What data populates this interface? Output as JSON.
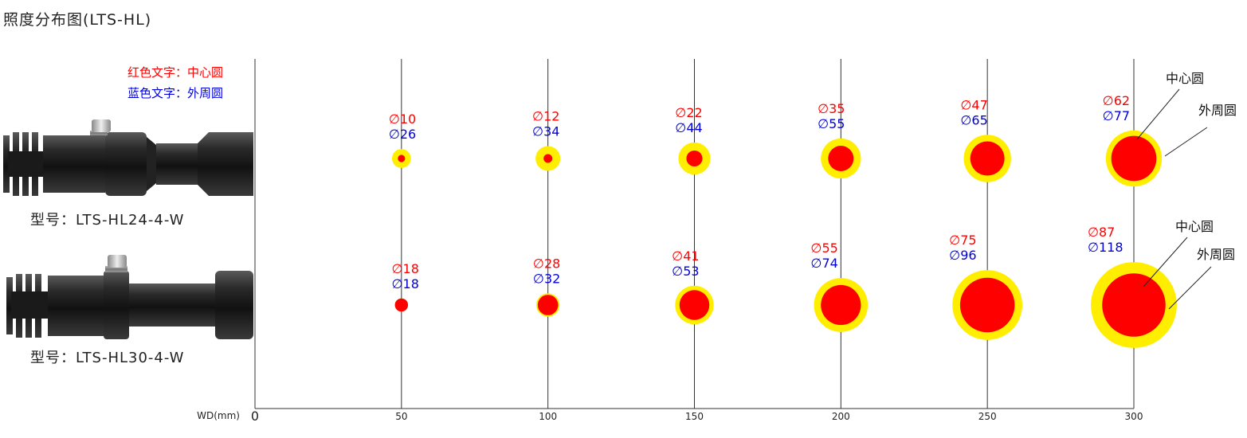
{
  "title": "照度分布图(LTS-HL)",
  "legend": {
    "red_text": "红色文字：中心圆",
    "blue_text": "蓝色文字：外周圆"
  },
  "colors": {
    "center_circle": "#ff0000",
    "outer_circle": "#ffee00",
    "red_label": "#ff0000",
    "blue_label": "#0000dd",
    "axis": "#333333"
  },
  "axis": {
    "label": "WD(mm)",
    "origin": "0",
    "ticks": [
      "50",
      "100",
      "150",
      "200",
      "250",
      "300"
    ]
  },
  "annotations": {
    "center": "中心圆",
    "outer": "外周圆"
  },
  "chart_data": {
    "type": "scatter",
    "x": [
      50,
      100,
      150,
      200,
      250,
      300
    ],
    "series": [
      {
        "model": "型号：LTS-HL24-4-W",
        "center": [
          10,
          12,
          22,
          35,
          47,
          62
        ],
        "outer": [
          26,
          34,
          44,
          55,
          65,
          77
        ],
        "center_labels": [
          "∅10",
          "∅12",
          "∅22",
          "∅35",
          "∅47",
          "∅62"
        ],
        "outer_labels": [
          "∅26",
          "∅34",
          "∅44",
          "∅55",
          "∅65",
          "∅77"
        ]
      },
      {
        "model": "型号：LTS-HL30-4-W",
        "center": [
          18,
          28,
          41,
          55,
          75,
          87
        ],
        "outer": [
          18,
          32,
          53,
          74,
          96,
          118
        ],
        "center_labels": [
          "∅18",
          "∅28",
          "∅41",
          "∅55",
          "∅75",
          "∅87"
        ],
        "outer_labels": [
          "∅18",
          "∅32",
          "∅53",
          "∅74",
          "∅96",
          "∅118"
        ]
      }
    ]
  }
}
